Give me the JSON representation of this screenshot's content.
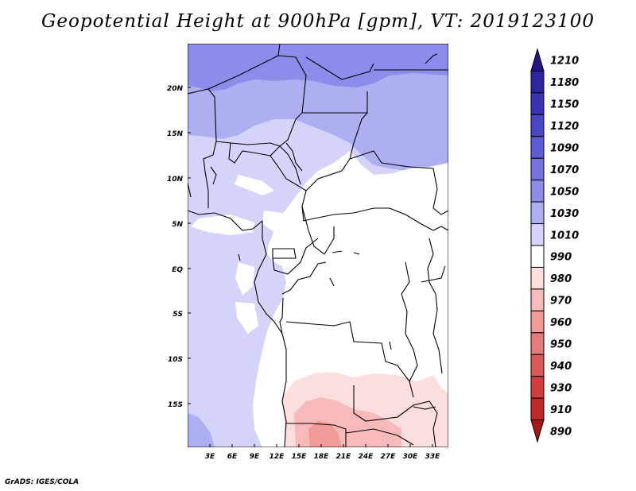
{
  "title": "Geopotential Height at 900hPa [gpm], VT: 2019123100",
  "credit": "GrADS: IGES/COLA",
  "map": {
    "lat_labels": [
      "20N",
      "15N",
      "10N",
      "5N",
      "EQ",
      "5S",
      "10S",
      "15S"
    ],
    "lon_labels": [
      "3E",
      "6E",
      "9E",
      "12E",
      "15E",
      "18E",
      "21E",
      "24E",
      "27E",
      "30E",
      "33E"
    ]
  },
  "colorbar": {
    "levels": [
      "1210",
      "1180",
      "1150",
      "1120",
      "1090",
      "1070",
      "1050",
      "1030",
      "1010",
      "990",
      "980",
      "970",
      "960",
      "950",
      "940",
      "930",
      "910",
      "890"
    ],
    "colors": [
      "#231582",
      "#2e24a0",
      "#3a33b6",
      "#4a46c8",
      "#5d5bd6",
      "#7473e0",
      "#8d8ceb",
      "#aeaef3",
      "#d4d4fa",
      "#ffffff",
      "#fcdede",
      "#f7b9b9",
      "#f19a9a",
      "#e57a7a",
      "#dd5a5a",
      "#d23e3e",
      "#c22828",
      "#aa1616"
    ]
  }
}
